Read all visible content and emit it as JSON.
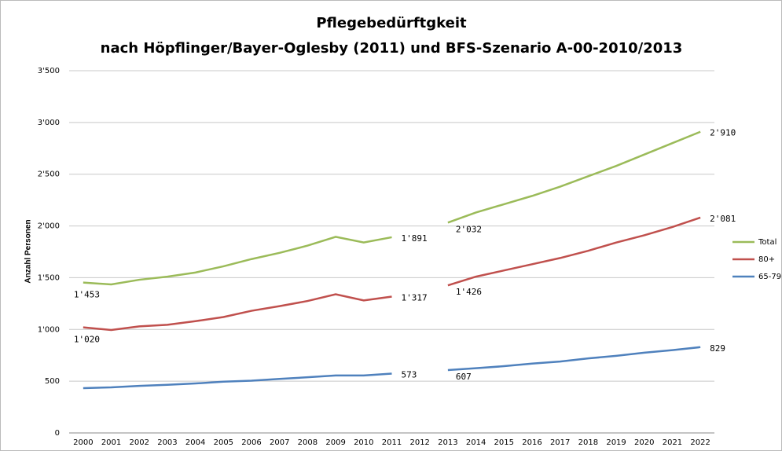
{
  "chart_data": {
    "type": "line",
    "title": "Pflegebedürftgkeit",
    "subtitle": "nach Höpflinger/Bayer-Oglesby (2011) und BFS-Szenario A-00-2010/2013",
    "y_label": "Anzahl Personen",
    "categories": [
      "2000",
      "2001",
      "2002",
      "2003",
      "2004",
      "2005",
      "2006",
      "2007",
      "2008",
      "2009",
      "2010",
      "2011",
      "2012",
      "2013",
      "2014",
      "2015",
      "2016",
      "2017",
      "2018",
      "2019",
      "2020",
      "2021",
      "2022"
    ],
    "series": [
      {
        "name": "Total",
        "color": "#9bbb59",
        "values": [
          1453,
          1435,
          1480,
          1510,
          1550,
          1610,
          1680,
          1740,
          1810,
          1895,
          1840,
          1891,
          null,
          2032,
          2130,
          2210,
          2290,
          2380,
          2480,
          2580,
          2690,
          2800,
          2910
        ],
        "value_labels": [
          "1'453",
          null,
          null,
          null,
          null,
          null,
          null,
          null,
          null,
          null,
          null,
          "1'891",
          null,
          "2'032",
          null,
          null,
          null,
          null,
          null,
          null,
          null,
          null,
          "2'910"
        ]
      },
      {
        "name": "80+",
        "color": "#c0504d",
        "values": [
          1020,
          995,
          1030,
          1045,
          1080,
          1120,
          1180,
          1225,
          1275,
          1340,
          1280,
          1317,
          null,
          1426,
          1510,
          1570,
          1630,
          1690,
          1760,
          1840,
          1910,
          1990,
          2081
        ],
        "value_labels": [
          "1'020",
          null,
          null,
          null,
          null,
          null,
          null,
          null,
          null,
          null,
          null,
          "1'317",
          null,
          "1'426",
          null,
          null,
          null,
          null,
          null,
          null,
          null,
          null,
          "2'081"
        ]
      },
      {
        "name": "65-79",
        "color": "#4f81bd",
        "values": [
          433,
          440,
          455,
          465,
          478,
          495,
          505,
          522,
          538,
          555,
          555,
          573,
          null,
          607,
          625,
          645,
          670,
          690,
          720,
          745,
          775,
          800,
          829
        ],
        "value_labels": [
          null,
          null,
          null,
          null,
          null,
          null,
          null,
          null,
          null,
          null,
          null,
          "573",
          null,
          "607",
          null,
          null,
          null,
          null,
          null,
          null,
          null,
          null,
          "829"
        ]
      }
    ],
    "ylim": [
      0,
      3500
    ],
    "yticks": [
      0,
      500,
      {
        "value": 1000,
        "label": "1'000"
      },
      {
        "value": 1500,
        "label": "1'500"
      },
      {
        "value": 2000,
        "label": "2'000"
      },
      {
        "value": 2500,
        "label": "2'500"
      },
      {
        "value": 3000,
        "label": "3'000"
      },
      {
        "value": 3500,
        "label": "3'500"
      }
    ],
    "grid": true,
    "legend": "right"
  }
}
